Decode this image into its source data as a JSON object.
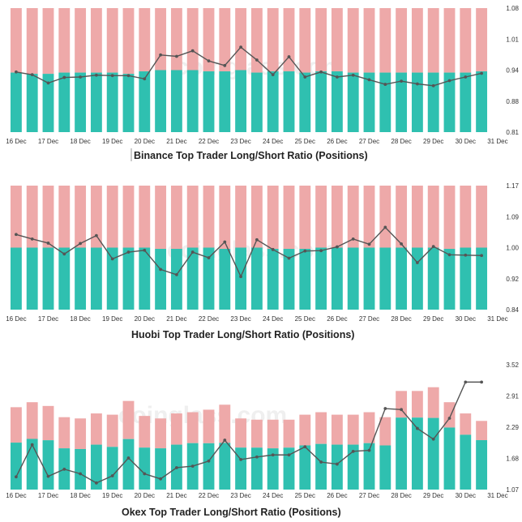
{
  "watermark": "coinglass.com",
  "colors": {
    "long": "#2fc0b0",
    "short": "#eea9a9",
    "ratio_line": "#555555",
    "axis_text": "#333333"
  },
  "chart_data": [
    {
      "type": "bar",
      "title": "Binance Top Trader Long/Short Ratio (Positions)",
      "x_tick_labels": [
        "16 Dec",
        "17 Dec",
        "18 Dec",
        "19 Dec",
        "20 Dec",
        "21 Dec",
        "22 Dec",
        "23 Dec",
        "24 Dec",
        "25 Dec",
        "26 Dec",
        "27 Dec",
        "28 Dec",
        "29 Dec",
        "30 Dec",
        "31 Dec"
      ],
      "y_ticks": [
        "1.08",
        "1.01",
        "0.94",
        "0.88",
        "0.81"
      ],
      "ylim": [
        0.81,
        1.08
      ],
      "bars": 30,
      "long_share": [
        0.48,
        0.47,
        0.47,
        0.48,
        0.48,
        0.48,
        0.48,
        0.47,
        0.49,
        0.5,
        0.5,
        0.5,
        0.49,
        0.49,
        0.5,
        0.48,
        0.49,
        0.49,
        0.48,
        0.49,
        0.49,
        0.48,
        0.48,
        0.48,
        0.48,
        0.48,
        0.48,
        0.48,
        0.48,
        0.49
      ],
      "series": [
        {
          "name": "",
          "values": [
            0.941,
            0.935,
            0.917,
            0.929,
            0.93,
            0.934,
            0.933,
            0.933,
            0.926,
            0.978,
            0.975,
            0.987,
            0.965,
            0.955,
            0.995,
            0.967,
            0.935,
            0.974,
            0.93,
            0.941,
            0.93,
            0.934,
            0.924,
            0.914,
            0.921,
            0.915,
            0.911,
            0.922,
            0.93,
            0.938
          ]
        }
      ]
    },
    {
      "type": "bar",
      "title": "Huobi Top Trader Long/Short Ratio (Positions)",
      "x_tick_labels": [
        "16 Dec",
        "17 Dec",
        "18 Dec",
        "19 Dec",
        "20 Dec",
        "21 Dec",
        "22 Dec",
        "23 Dec",
        "24 Dec",
        "25 Dec",
        "26 Dec",
        "27 Dec",
        "28 Dec",
        "29 Dec",
        "30 Dec",
        "31 Dec"
      ],
      "y_ticks": [
        "1.17",
        "1.09",
        "1.00",
        "0.92",
        "0.84"
      ],
      "ylim": [
        0.84,
        1.17
      ],
      "bars": 30,
      "long_share": [
        0.5,
        0.5,
        0.5,
        0.5,
        0.5,
        0.5,
        0.5,
        0.5,
        0.5,
        0.49,
        0.49,
        0.5,
        0.5,
        0.49,
        0.5,
        0.5,
        0.49,
        0.49,
        0.49,
        0.5,
        0.5,
        0.5,
        0.5,
        0.5,
        0.5,
        0.5,
        0.5,
        0.49,
        0.5,
        0.5
      ],
      "series": [
        {
          "name": "",
          "values": [
            1.04,
            1.028,
            1.017,
            0.988,
            1.016,
            1.037,
            0.975,
            0.993,
            0.998,
            0.947,
            0.933,
            0.993,
            0.978,
            1.02,
            0.928,
            1.026,
            1.0,
            0.977,
            0.996,
            0.997,
            1.007,
            1.028,
            1.014,
            1.059,
            1.015,
            0.965,
            1.008,
            0.986,
            0.985,
            0.984
          ]
        }
      ]
    },
    {
      "type": "bar",
      "title": "Okex Top Trader Long/Short Ratio (Positions)",
      "x_tick_labels": [
        "16 Dec",
        "17 Dec",
        "18 Dec",
        "19 Dec",
        "20 Dec",
        "21 Dec",
        "22 Dec",
        "23 Dec",
        "24 Dec",
        "25 Dec",
        "26 Dec",
        "27 Dec",
        "28 Dec",
        "29 Dec",
        "30 Dec",
        "31 Dec"
      ],
      "y_ticks": [
        "3.52",
        "2.91",
        "2.29",
        "1.68",
        "1.07"
      ],
      "ylim": [
        1.07,
        3.52
      ],
      "bars": 30,
      "bar_height_share": [
        0.66,
        0.7,
        0.67,
        0.58,
        0.57,
        0.61,
        0.6,
        0.71,
        0.59,
        0.57,
        0.61,
        0.62,
        0.64,
        0.68,
        0.57,
        0.56,
        0.56,
        0.56,
        0.6,
        0.62,
        0.6,
        0.6,
        0.62,
        0.58,
        0.79,
        0.79,
        0.82,
        0.7,
        0.61,
        0.55
      ],
      "long_share": [
        0.57,
        0.58,
        0.59,
        0.57,
        0.57,
        0.59,
        0.57,
        0.57,
        0.57,
        0.58,
        0.59,
        0.6,
        0.58,
        0.55,
        0.59,
        0.6,
        0.59,
        0.6,
        0.59,
        0.59,
        0.6,
        0.6,
        0.6,
        0.61,
        0.73,
        0.73,
        0.7,
        0.71,
        0.72,
        0.72
      ],
      "series": [
        {
          "name": "",
          "values": [
            1.32,
            1.95,
            1.33,
            1.47,
            1.38,
            1.2,
            1.34,
            1.69,
            1.38,
            1.28,
            1.5,
            1.53,
            1.63,
            2.04,
            1.66,
            1.71,
            1.75,
            1.75,
            1.91,
            1.61,
            1.57,
            1.82,
            1.84,
            2.66,
            2.64,
            2.27,
            2.06,
            2.47,
            3.18,
            3.18
          ]
        }
      ]
    }
  ]
}
